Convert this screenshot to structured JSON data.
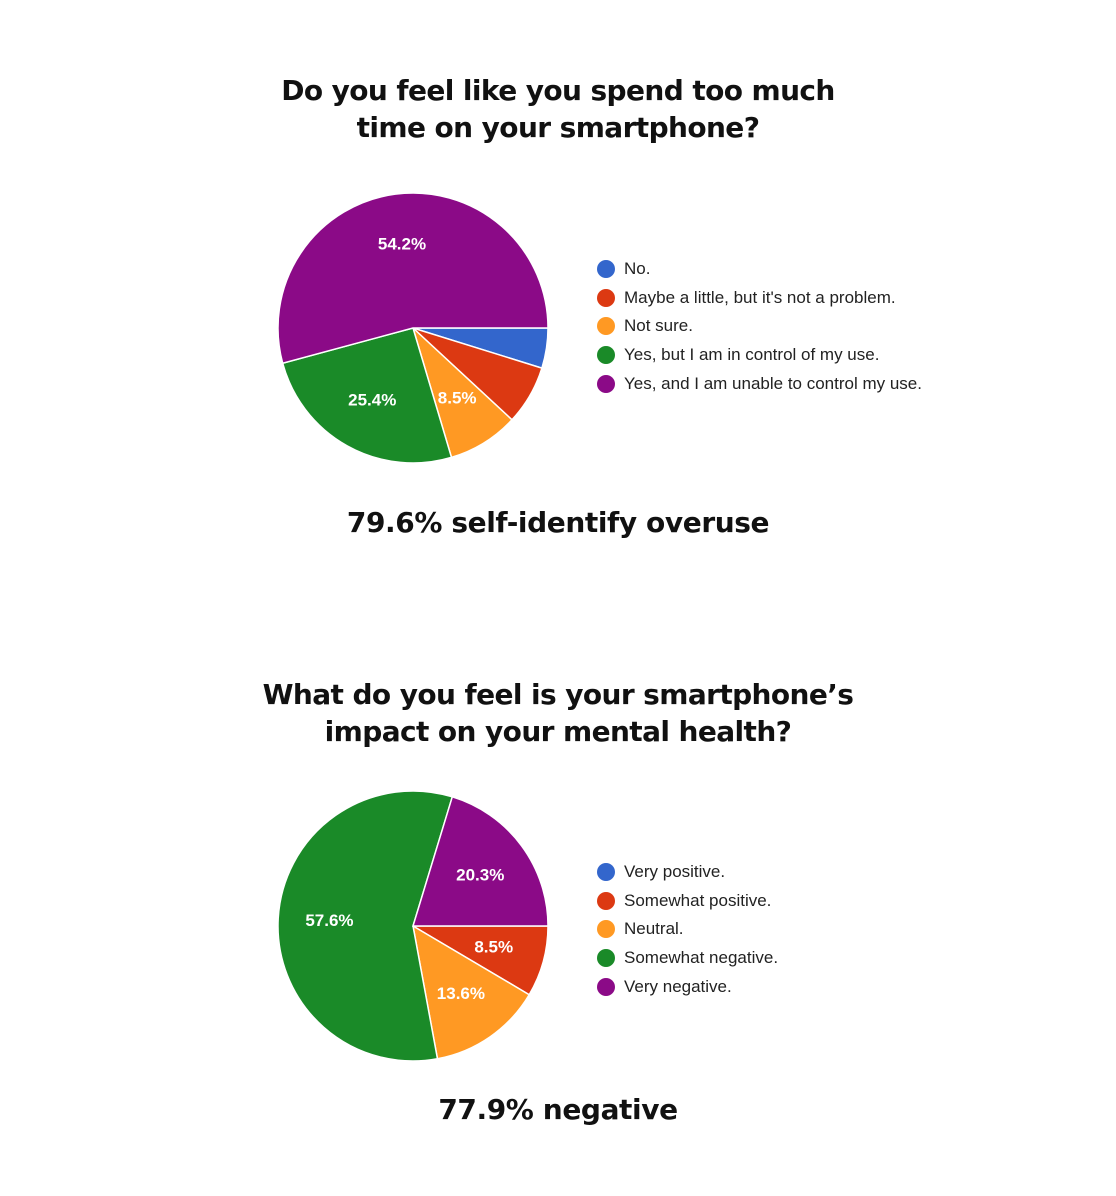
{
  "colors": {
    "blue": "#3366cc",
    "red": "#dc3912",
    "orange": "#ff9923",
    "green": "#1a8a28",
    "purple": "#8b0a87"
  },
  "chart_data": [
    {
      "type": "pie",
      "title_lines": [
        "Do you feel like you spend too much",
        "time on your smartphone?"
      ],
      "title": "Do you feel like you spend too much time on your smartphone?",
      "labels": [
        "No.",
        "Maybe a little, but it's not a problem.",
        "Not sure.",
        "Yes, but I am in control of my use.",
        "Yes, and I am unable to control my use."
      ],
      "values": [
        4.8,
        7.1,
        8.5,
        25.4,
        54.2
      ],
      "data_labels": [
        "",
        "",
        "8.5%",
        "25.4%",
        "54.2%"
      ],
      "colors": [
        "#3366cc",
        "#dc3912",
        "#ff9923",
        "#1a8a28",
        "#8b0a87"
      ],
      "legend_position": "right",
      "summary": "79.6% self-identify overuse"
    },
    {
      "type": "pie",
      "title_lines": [
        "What do you feel is your smartphone’s",
        "impact on your mental health?"
      ],
      "title": "What do you feel is your smartphone’s impact on your mental health?",
      "labels": [
        "Very positive.",
        "Somewhat positive.",
        "Neutral.",
        "Somewhat negative.",
        "Very negative."
      ],
      "values": [
        0.0,
        8.5,
        13.6,
        57.6,
        20.3
      ],
      "data_labels": [
        "",
        "8.5%",
        "13.6%",
        "57.6%",
        "20.3%"
      ],
      "colors": [
        "#3366cc",
        "#dc3912",
        "#ff9923",
        "#1a8a28",
        "#8b0a87"
      ],
      "legend_position": "right",
      "summary": "77.9% negative"
    }
  ]
}
